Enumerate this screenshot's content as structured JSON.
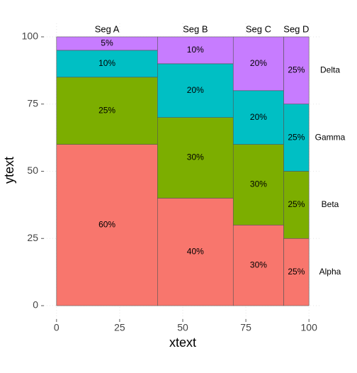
{
  "chart_data": {
    "type": "mosaic",
    "xlabel": "xtext",
    "ylabel": "ytext",
    "categories": [
      "Seg A",
      "Seg B",
      "Seg C",
      "Seg D"
    ],
    "widths": [
      40,
      30,
      20,
      10
    ],
    "series": [
      {
        "name": "Alpha",
        "color": "#F8766D",
        "values": [
          60,
          40,
          30,
          25
        ],
        "value_labels": [
          "60%",
          "40%",
          "30%",
          "25%"
        ]
      },
      {
        "name": "Beta",
        "color": "#7CAE00",
        "values": [
          25,
          30,
          30,
          25
        ],
        "value_labels": [
          "25%",
          "30%",
          "30%",
          "25%"
        ]
      },
      {
        "name": "Gamma",
        "color": "#00BFC4",
        "values": [
          10,
          20,
          20,
          25
        ],
        "value_labels": [
          "10%",
          "20%",
          "20%",
          "25%"
        ]
      },
      {
        "name": "Delta",
        "color": "#C77CFF",
        "values": [
          5,
          10,
          20,
          25
        ],
        "value_labels": [
          "5%",
          "10%",
          "20%",
          "25%"
        ]
      }
    ],
    "xlim": [
      -5,
      105
    ],
    "ylim": [
      -5,
      105
    ],
    "xticks": [
      0,
      25,
      50,
      75,
      100
    ],
    "yticks": [
      0,
      25,
      50,
      75,
      100
    ],
    "grid": true
  }
}
